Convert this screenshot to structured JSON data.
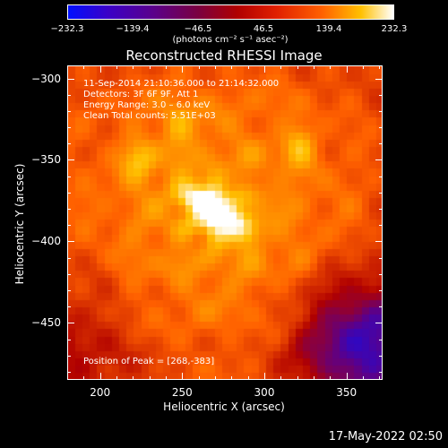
{
  "chart_data": {
    "type": "heatmap",
    "title": "Reconstructed RHESSI Image",
    "xlabel": "Heliocentric X (arcsec)",
    "ylabel": "Heliocentric Y (arcsec)",
    "xlim": [
      180,
      372
    ],
    "ylim": [
      -485,
      -292
    ],
    "x_ticks": [
      "200",
      "250",
      "300",
      "350"
    ],
    "y_ticks": [
      "−300",
      "−350",
      "−400",
      "−450"
    ],
    "colorbar": {
      "ticks": [
        "−232.3",
        "−139.4",
        "−46.5",
        "46.5",
        "139.4",
        "232.3"
      ],
      "range": [
        -232.3,
        232.3
      ],
      "units": "(photons cm⁻² s⁻¹ asec⁻²)",
      "colors": [
        "#0010ff",
        "#5a008c",
        "#b00000",
        "#ff6000",
        "#ffc000",
        "#ffffff"
      ]
    },
    "annotations": {
      "time": "11-Sep-2014 21:10:36.000 to 21:14:32.000",
      "detectors": "Detectors: 3F 6F 9F, Att 1",
      "energy": "Energy Range: 3.0 – 6.0 keV",
      "clean": "Clean     Total counts: 5.51E+03",
      "peak": "Position of Peak = [268,-383]"
    },
    "peak": {
      "x": 268,
      "y": -383
    },
    "secondary_sources": [
      {
        "x": 245,
        "y": -328
      },
      {
        "x": 320,
        "y": -342
      },
      {
        "x": 222,
        "y": -352
      }
    ],
    "negative_region": {
      "x": 358,
      "y": -465
    }
  },
  "footer": {
    "timestamp": "17-May-2022 02:50"
  }
}
